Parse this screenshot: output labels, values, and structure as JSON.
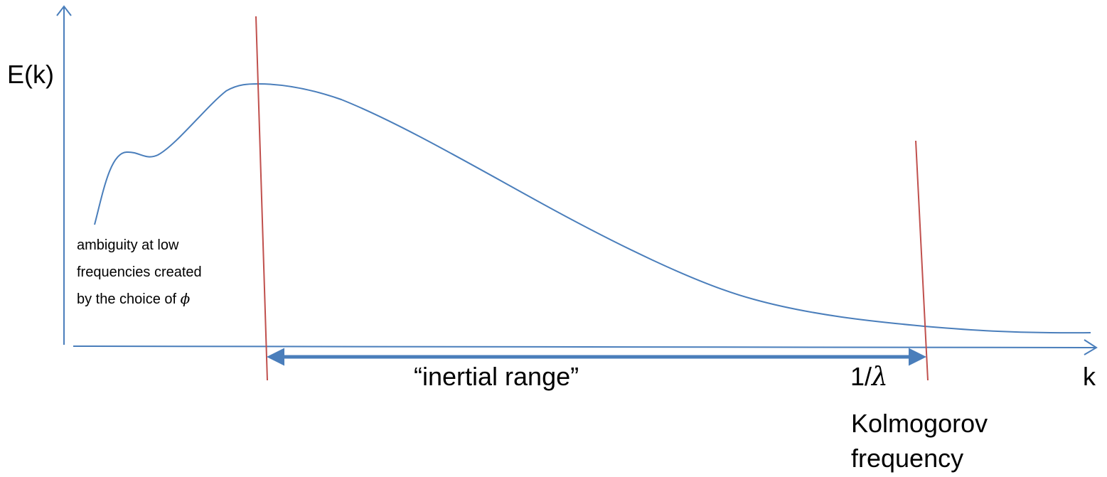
{
  "axes": {
    "y_label": "E(k)",
    "x_label": "k"
  },
  "annotation": {
    "line1": "ambiguity at low",
    "line2": "frequencies created",
    "line3_prefix": "by the choice of ",
    "line3_symbol": "ϕ"
  },
  "range": {
    "label": "“inertial range”"
  },
  "cutoff": {
    "label_prefix": "1/",
    "label_symbol": "λ",
    "caption_line1": "Kolmogorov",
    "caption_line2": "frequency"
  },
  "colors": {
    "axis": "#4a7ebb",
    "curve": "#4a7ebb",
    "marker_line": "#c0504d",
    "range_arrow": "#4a7ebb",
    "text": "#000000"
  }
}
